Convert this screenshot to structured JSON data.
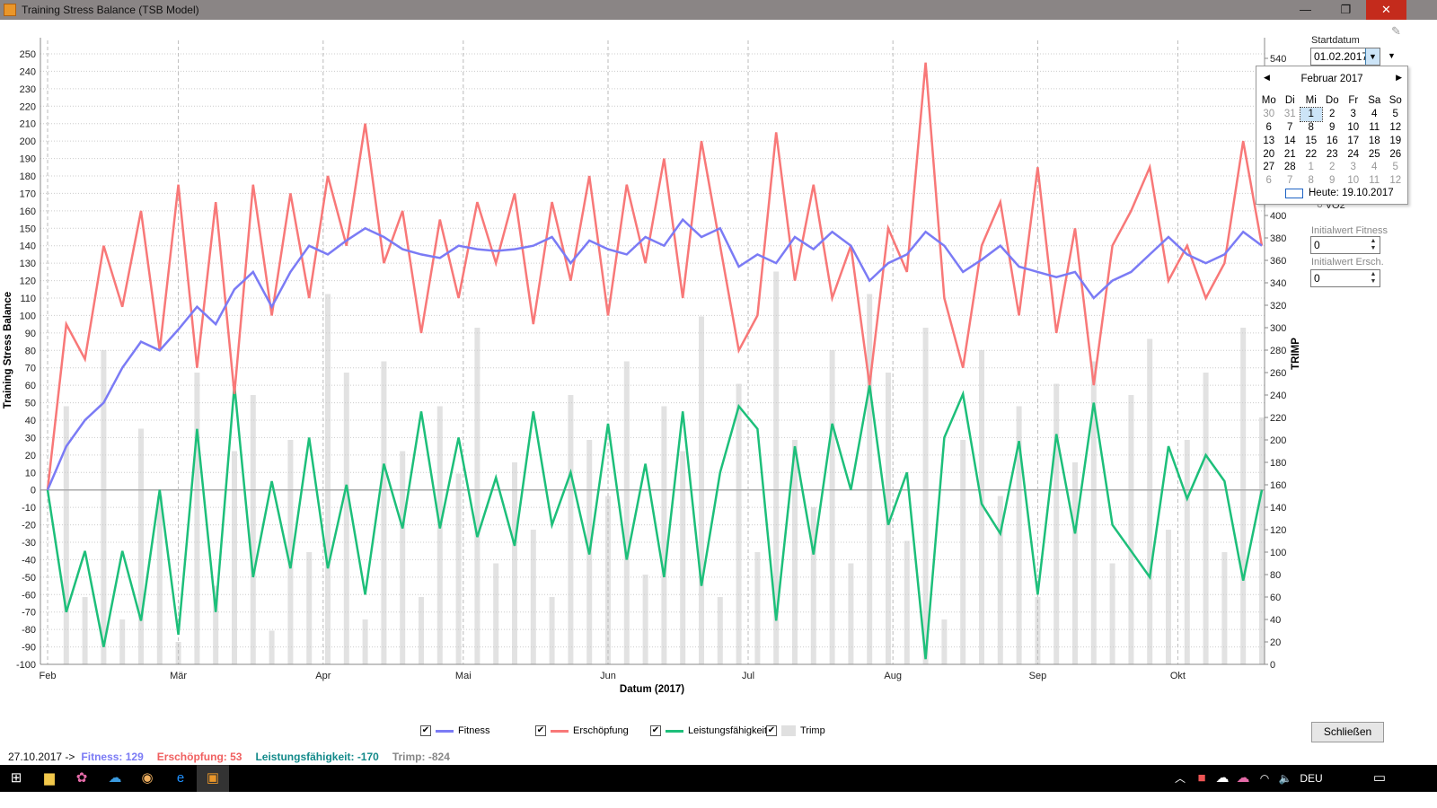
{
  "window": {
    "title": "Training Stress Balance (TSB Model)",
    "minimize": "—",
    "restore": "❐",
    "close": "✕"
  },
  "panel": {
    "startdatum_label": "Startdatum",
    "startdatum_value": "01.02.2017",
    "vo2_label": "VO2",
    "initial_fitness_label": "Initialwert Fitness",
    "initial_fitness_value": "0",
    "initial_ersch_label": "Initialwert Ersch.",
    "initial_ersch_value": "0",
    "close_button": "Schließen"
  },
  "calendar": {
    "month": "Februar 2017",
    "weekdays": [
      "Mo",
      "Di",
      "Mi",
      "Do",
      "Fr",
      "Sa",
      "So"
    ],
    "weeks": [
      [
        "30",
        "31",
        "1",
        "2",
        "3",
        "4",
        "5"
      ],
      [
        "6",
        "7",
        "8",
        "9",
        "10",
        "11",
        "12"
      ],
      [
        "13",
        "14",
        "15",
        "16",
        "17",
        "18",
        "19"
      ],
      [
        "20",
        "21",
        "22",
        "23",
        "24",
        "25",
        "26"
      ],
      [
        "27",
        "28",
        "1",
        "2",
        "3",
        "4",
        "5"
      ],
      [
        "6",
        "7",
        "8",
        "9",
        "10",
        "11",
        "12"
      ]
    ],
    "today": "Heute: 19.10.2017"
  },
  "legend": [
    {
      "label": "Fitness",
      "color": "#7b7bf5"
    },
    {
      "label": "Erschöpfung",
      "color": "#f87878"
    },
    {
      "label": "Leistungsfähigkeit",
      "color": "#1dbf7a"
    },
    {
      "label": "Trimp",
      "color": "#e0e0e0"
    }
  ],
  "status": {
    "date": "27.10.2017 ->",
    "fitness": "Fitness: 129",
    "ersch": "Erschöpfung: 53",
    "leistung": "Leistungsfähigkeit: -170",
    "trimp": "Trimp: -824"
  },
  "taskbar": {
    "lang": "DEU"
  },
  "chart_data": {
    "type": "line",
    "xlabel": "Datum (2017)",
    "ylabel": "Training Stress Balance",
    "y2label": "TRIMP",
    "ylim": [
      -100,
      250
    ],
    "y2lim": [
      0,
      540
    ],
    "x_start": "01.02.2017",
    "x_step_days": 4,
    "month_ticks": [
      {
        "label": "Feb",
        "day": 0
      },
      {
        "label": "Mär",
        "day": 28
      },
      {
        "label": "Apr",
        "day": 59
      },
      {
        "label": "Mai",
        "day": 89
      },
      {
        "label": "Jun",
        "day": 120
      },
      {
        "label": "Jul",
        "day": 150
      },
      {
        "label": "Aug",
        "day": 181
      },
      {
        "label": "Sep",
        "day": 212
      },
      {
        "label": "Okt",
        "day": 242
      }
    ],
    "series": [
      {
        "name": "Fitness",
        "values": [
          0,
          25,
          40,
          50,
          70,
          85,
          80,
          92,
          105,
          95,
          115,
          125,
          105,
          125,
          140,
          135,
          143,
          150,
          145,
          138,
          135,
          133,
          140,
          138,
          137,
          138,
          140,
          145,
          130,
          143,
          138,
          135,
          145,
          140,
          155,
          145,
          150,
          128,
          135,
          130,
          145,
          138,
          148,
          140,
          120,
          130,
          135,
          148,
          140,
          125,
          132,
          140,
          128,
          125,
          122,
          125,
          110,
          120,
          125,
          135,
          145,
          135,
          130,
          135,
          148,
          140
        ]
      },
      {
        "name": "Erschöpfung",
        "values": [
          0,
          95,
          75,
          140,
          105,
          160,
          80,
          175,
          70,
          165,
          55,
          175,
          100,
          170,
          110,
          180,
          140,
          210,
          130,
          160,
          90,
          155,
          110,
          165,
          130,
          170,
          95,
          165,
          120,
          180,
          100,
          175,
          130,
          190,
          110,
          200,
          140,
          80,
          100,
          205,
          120,
          175,
          110,
          140,
          60,
          150,
          125,
          245,
          110,
          70,
          140,
          165,
          100,
          185,
          90,
          150,
          60,
          140,
          160,
          185,
          120,
          140,
          110,
          130,
          200,
          140
        ]
      },
      {
        "name": "Leistungsfähigkeit",
        "derived_from": "Fitness - Erschöpfung"
      },
      {
        "name": "Trimp",
        "axis": "right",
        "values": [
          0,
          230,
          60,
          280,
          40,
          210,
          150,
          20,
          260,
          70,
          190,
          240,
          30,
          200,
          100,
          330,
          260,
          40,
          270,
          190,
          60,
          230,
          170,
          300,
          90,
          180,
          120,
          60,
          240,
          200,
          150,
          270,
          80,
          230,
          190,
          310,
          60,
          250,
          100,
          350,
          200,
          140,
          280,
          90,
          330,
          260,
          110,
          300,
          40,
          200,
          280,
          150,
          230,
          60,
          250,
          180,
          270,
          90,
          240,
          290,
          120,
          200,
          260,
          100,
          300,
          220
        ]
      }
    ]
  }
}
